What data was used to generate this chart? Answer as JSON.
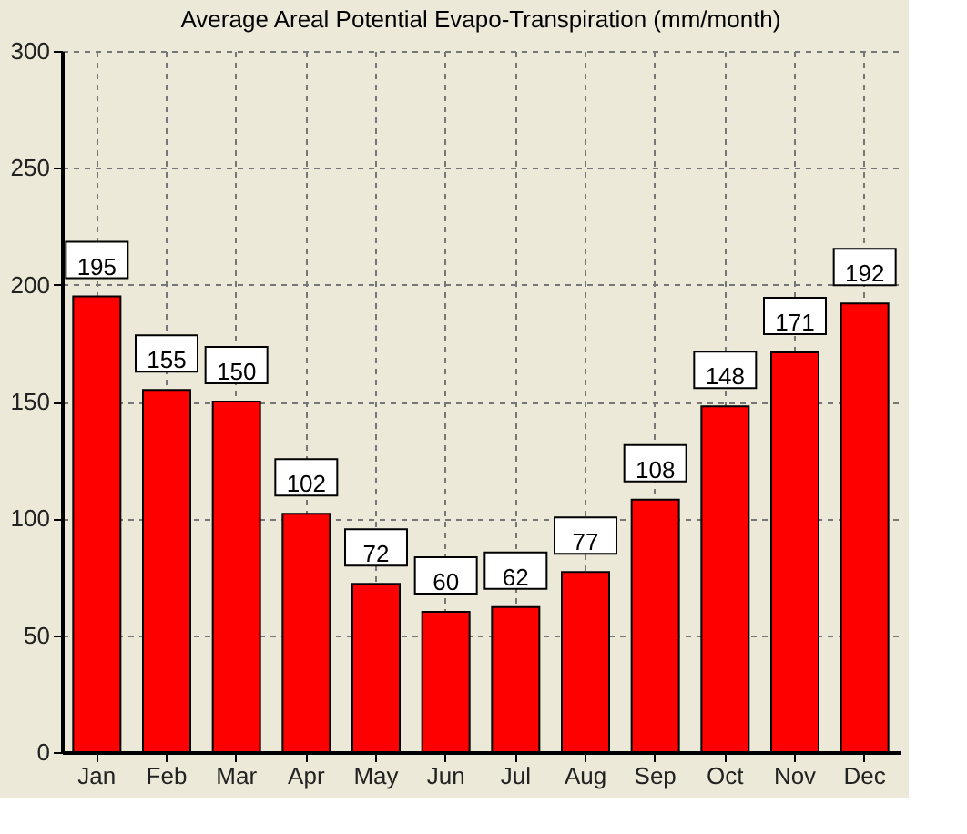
{
  "chart_data": {
    "type": "bar",
    "title": "Average Areal Potential Evapo-Transpiration (mm/month)",
    "categories": [
      "Jan",
      "Feb",
      "Mar",
      "Apr",
      "May",
      "Jun",
      "Jul",
      "Aug",
      "Sep",
      "Oct",
      "Nov",
      "Dec"
    ],
    "values": [
      195,
      155,
      150,
      102,
      72,
      60,
      62,
      77,
      108,
      148,
      171,
      192
    ],
    "color": "#ff0000",
    "ylim": [
      0,
      300
    ],
    "yticks": [
      0,
      50,
      100,
      150,
      200,
      250,
      300
    ],
    "grid": true,
    "data_labels": true
  }
}
